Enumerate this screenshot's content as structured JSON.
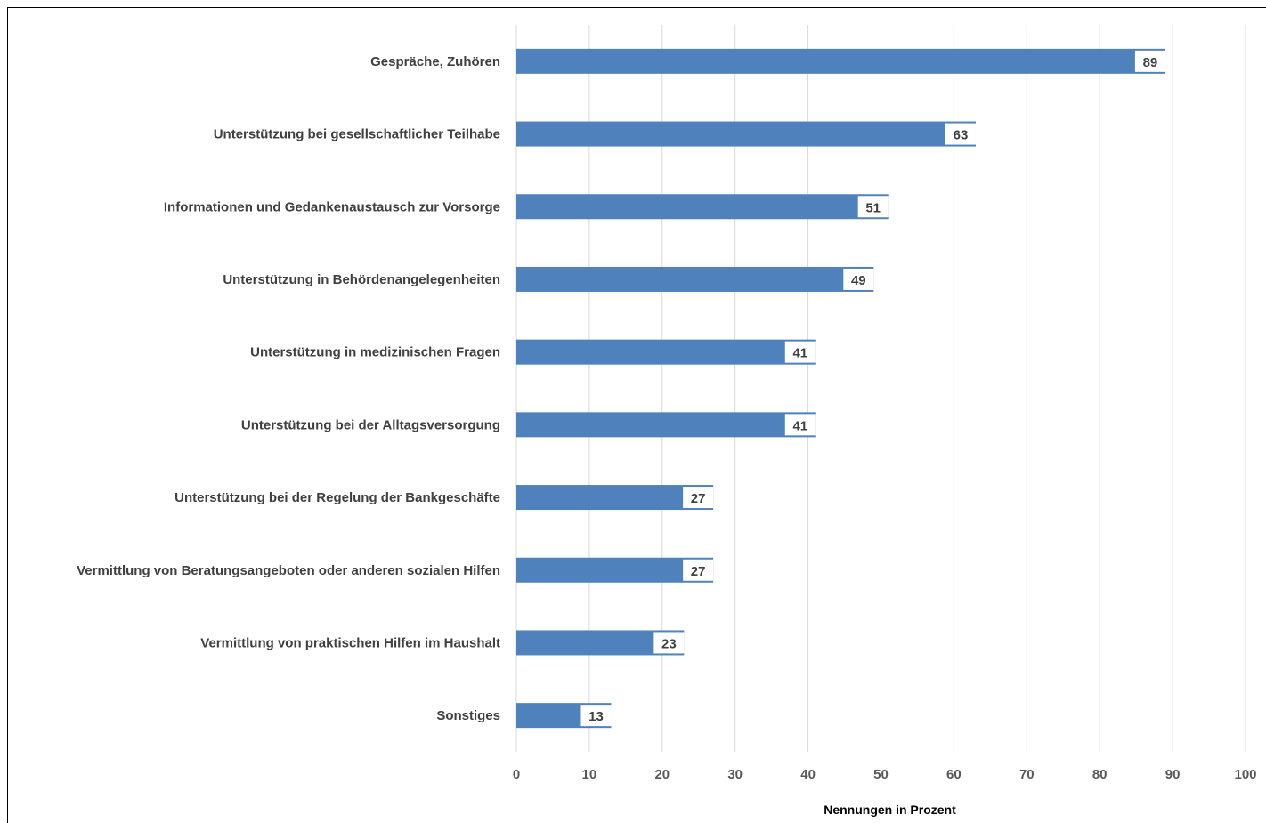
{
  "chart_data": {
    "type": "bar",
    "orientation": "horizontal",
    "categories": [
      "Gespräche, Zuhören",
      "Unterstützung bei gesellschaftlicher Teilhabe",
      "Informationen und Gedankenaustausch zur Vorsorge",
      "Unterstützung in Behördenangelegenheiten",
      "Unterstützung in medizinischen Fragen",
      "Unterstützung bei der Alltagsversorgung",
      "Unterstützung bei der Regelung der Bankgeschäfte",
      "Vermittlung von Beratungsangeboten oder anderen sozialen Hilfen",
      "Vermittlung von praktischen Hilfen im Haushalt",
      "Sonstiges"
    ],
    "values": [
      89,
      63,
      51,
      49,
      41,
      41,
      27,
      27,
      23,
      13
    ],
    "xlabel": "Nennungen in Prozent",
    "ylabel": "",
    "xlim": [
      0,
      100
    ],
    "xticks": [
      0,
      10,
      20,
      30,
      40,
      50,
      60,
      70,
      80,
      90,
      100
    ],
    "grid": true,
    "legend": "none",
    "bar_color": "#4f81bd",
    "gridline_color": "#d9d9d9"
  }
}
